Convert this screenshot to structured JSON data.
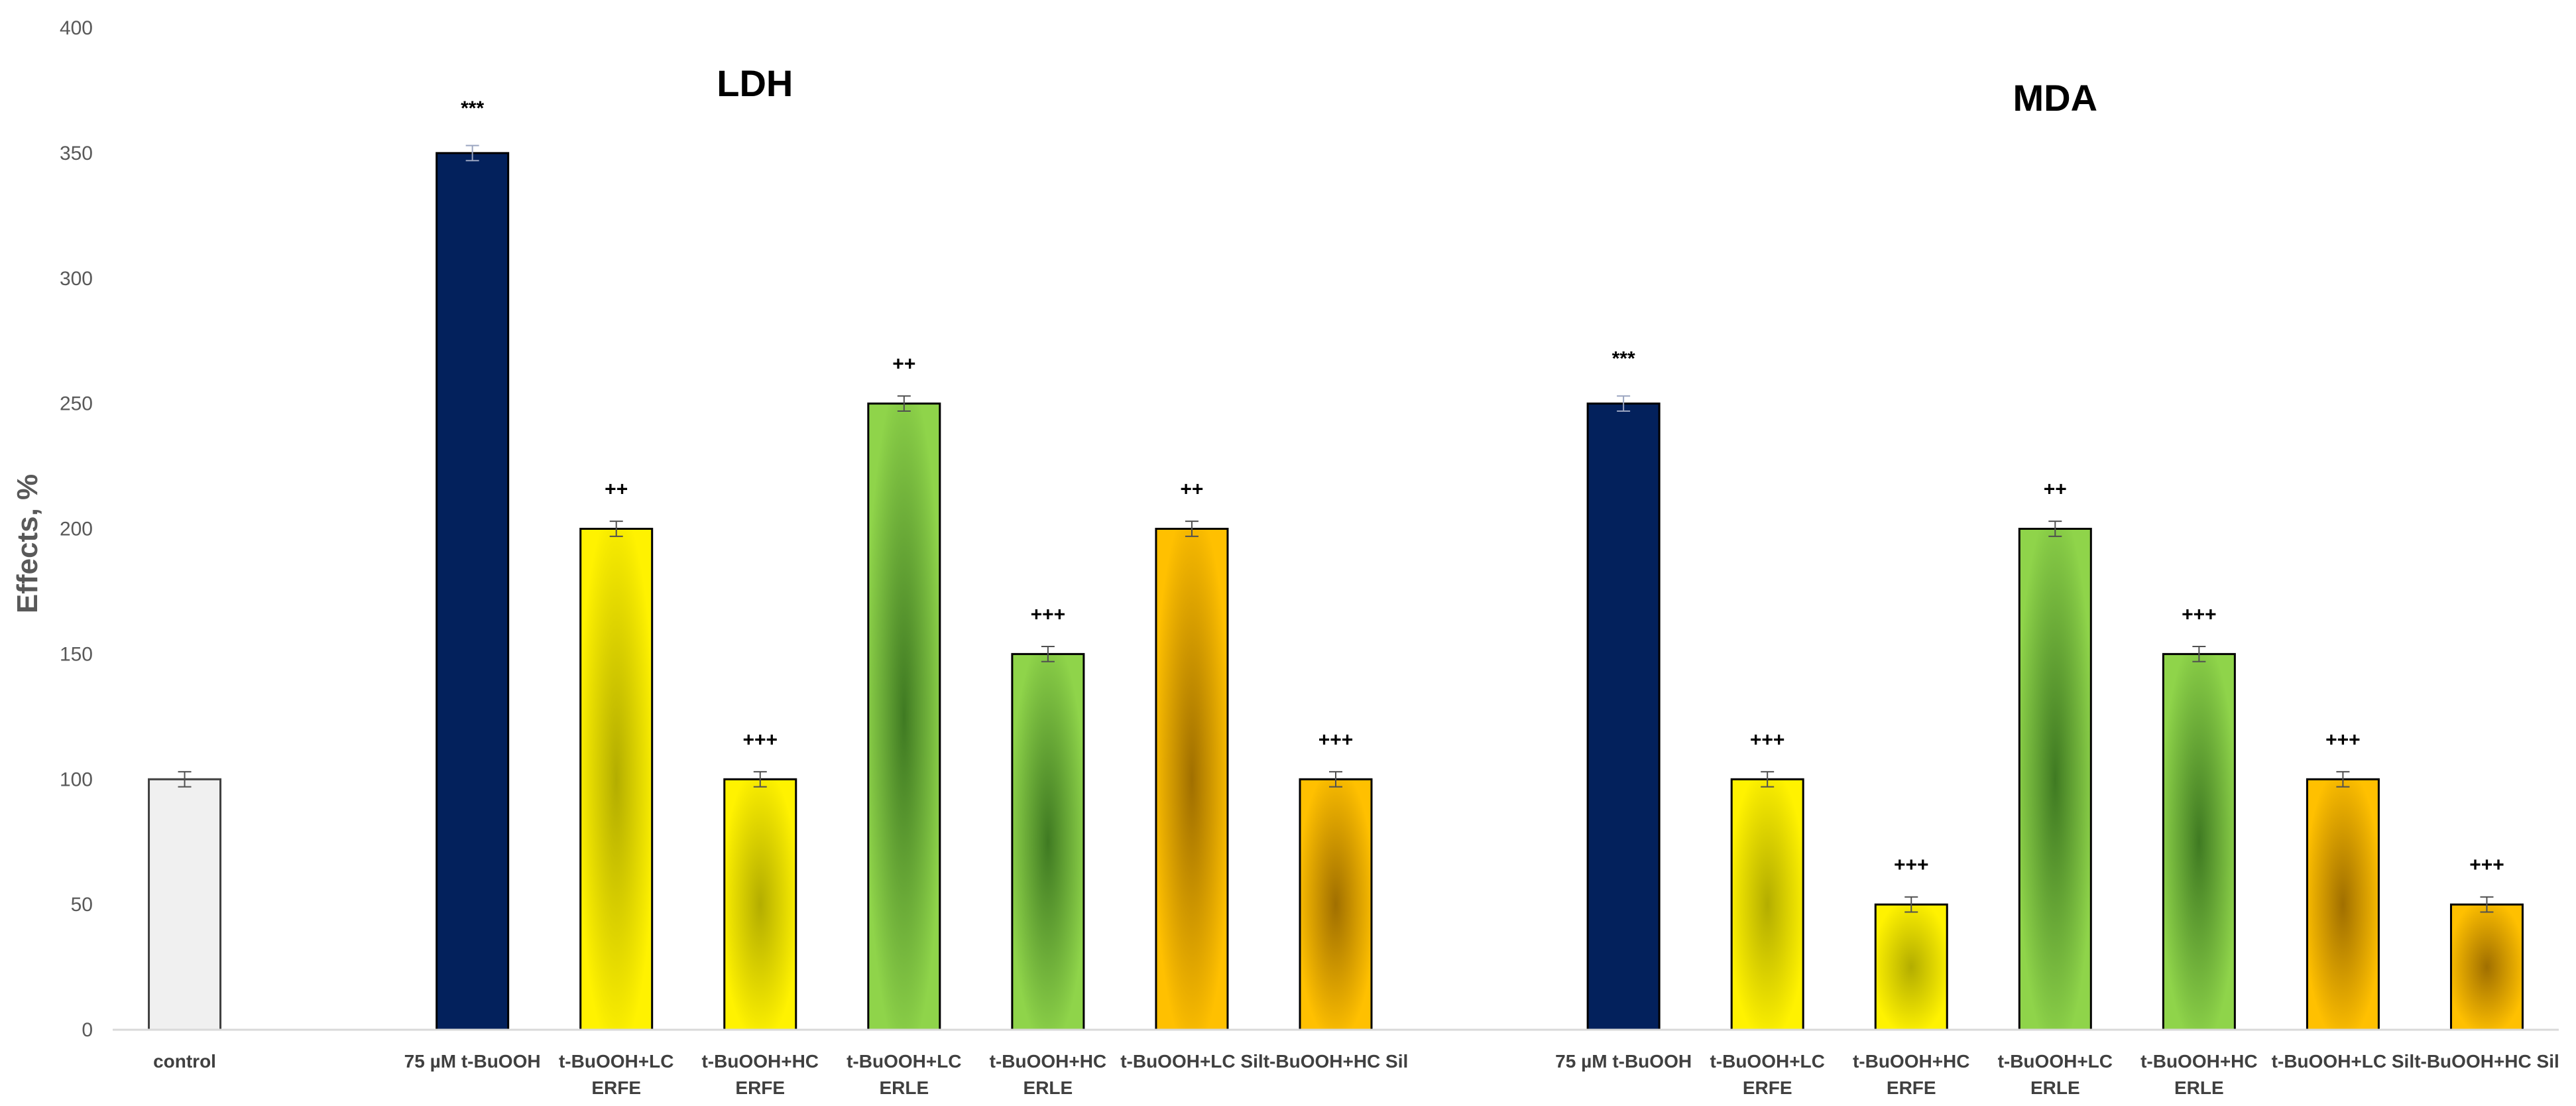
{
  "chart_data": {
    "type": "bar",
    "ylabel": "Effects, %",
    "ylim": [
      0,
      400
    ],
    "yticks": [
      0,
      50,
      100,
      150,
      200,
      250,
      300,
      350,
      400
    ],
    "grid": false,
    "error_bars": true,
    "groups": [
      {
        "title": "",
        "bars": [
          {
            "label": "control",
            "value": 100,
            "error": 3,
            "sig": "",
            "style": "control"
          }
        ]
      },
      {
        "title": "LDH",
        "bars": [
          {
            "label": "75 µM t-BuOOH",
            "value": 350,
            "error": 3,
            "sig": "***",
            "style": "navy"
          },
          {
            "label": "t-BuOOH+LC ERFE",
            "value": 200,
            "error": 3,
            "sig": "++",
            "style": "yellow"
          },
          {
            "label": "t-BuOOH+HC ERFE",
            "value": 100,
            "error": 3,
            "sig": "+++",
            "style": "yellow"
          },
          {
            "label": "t-BuOOH+LC ERLE",
            "value": 250,
            "error": 3,
            "sig": "++",
            "style": "green"
          },
          {
            "label": "t-BuOOH+HC ERLE",
            "value": 150,
            "error": 3,
            "sig": "+++",
            "style": "green"
          },
          {
            "label": "t-BuOOH+LC Sil",
            "value": 200,
            "error": 3,
            "sig": "++",
            "style": "orange"
          },
          {
            "label": "t-BuOOH+HC Sil",
            "value": 100,
            "error": 3,
            "sig": "+++",
            "style": "orange"
          }
        ]
      },
      {
        "title": "MDA",
        "bars": [
          {
            "label": "75 µM t-BuOOH",
            "value": 250,
            "error": 3,
            "sig": "***",
            "style": "navy"
          },
          {
            "label": "t-BuOOH+LC ERFE",
            "value": 100,
            "error": 3,
            "sig": "+++",
            "style": "yellow"
          },
          {
            "label": "t-BuOOH+HC ERFE",
            "value": 50,
            "error": 3,
            "sig": "+++",
            "style": "yellow"
          },
          {
            "label": "t-BuOOH+LC ERLE",
            "value": 200,
            "error": 3,
            "sig": "++",
            "style": "green"
          },
          {
            "label": "t-BuOOH+HC ERLE",
            "value": 150,
            "error": 3,
            "sig": "+++",
            "style": "green"
          },
          {
            "label": "t-BuOOH+LC Sil",
            "value": 100,
            "error": 3,
            "sig": "+++",
            "style": "orange"
          },
          {
            "label": "t-BuOOH+HC Sil",
            "value": 50,
            "error": 3,
            "sig": "+++",
            "style": "orange"
          }
        ]
      }
    ],
    "colors": {
      "control": "#f0f0f0",
      "navy": "#03215c",
      "yellow_edge": "#fff200",
      "yellow_center": "#b3ad00",
      "green_edge": "#8fd44a",
      "green_center": "#3f7a22",
      "orange_edge": "#ffc000",
      "orange_center": "#a06f00"
    }
  }
}
